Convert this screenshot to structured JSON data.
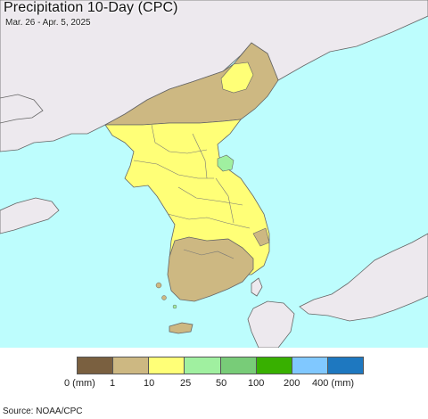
{
  "title": "Precipitation 10-Day (CPC)",
  "date_range": "Mar. 26 - Apr. 5, 2025",
  "source": "Source: NOAA/CPC",
  "legend": {
    "bins": [
      {
        "color": "#7a6040"
      },
      {
        "color": "#cdb882"
      },
      {
        "color": "#ffff77"
      },
      {
        "color": "#a0f0a0"
      },
      {
        "color": "#78cc78"
      },
      {
        "color": "#38b000"
      },
      {
        "color": "#80c8ff"
      },
      {
        "color": "#1e78c0"
      }
    ],
    "labels": [
      "0 (mm)",
      "1",
      "10",
      "25",
      "50",
      "100",
      "200",
      "400 (mm)"
    ]
  },
  "colors": {
    "ocean": "#bdfdfd",
    "land_outside": "#ede9ee",
    "border_line": "#555555"
  }
}
